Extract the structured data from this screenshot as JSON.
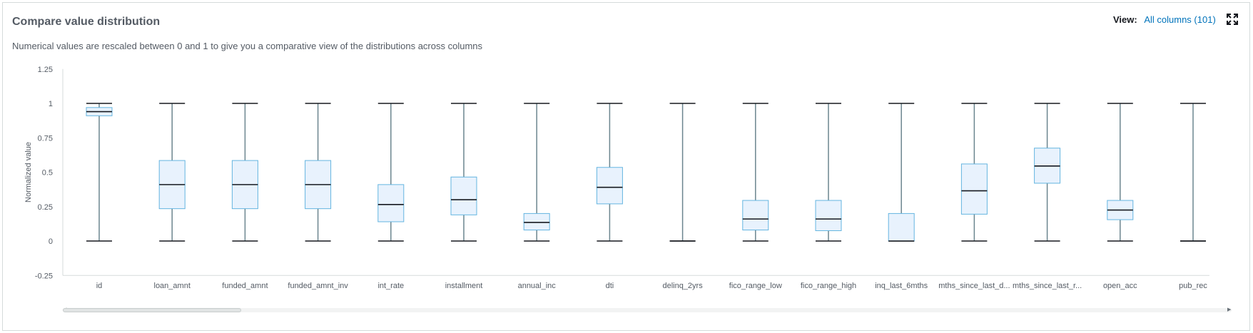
{
  "header": {
    "title": "Compare value distribution",
    "subtitle": "Numerical values are rescaled between 0 and 1 to give you a comparative view of the distributions across columns",
    "view_label": "View:",
    "view_value": "All columns (101)"
  },
  "icons": {
    "expand": "expand-icon"
  },
  "colors": {
    "box_fill": "#e8f2fd",
    "box_stroke": "#64b5e0",
    "whisker": "#6c868f",
    "cap": "#16191f",
    "median": "#16191f",
    "axis": "#d5dbdb",
    "text": "#545b64"
  },
  "chart_data": {
    "type": "boxplot",
    "ylabel": "Normalized value",
    "ylim": [
      -0.25,
      1.25
    ],
    "yticks": [
      1.25,
      1,
      0.75,
      0.5,
      0.25,
      0,
      -0.25
    ],
    "ytick_labels": [
      "1.25",
      "1",
      "0.75",
      "0.5",
      "0.25",
      "0",
      "-0.25"
    ],
    "categories": [
      "id",
      "loan_amnt",
      "funded_amnt",
      "funded_amnt_inv",
      "int_rate",
      "installment",
      "annual_inc",
      "dti",
      "delinq_2yrs",
      "fico_range_low",
      "fico_range_high",
      "inq_last_6mths",
      "mths_since_last_d...",
      "mths_since_last_r...",
      "open_acc",
      "pub_rec"
    ],
    "boxes": [
      {
        "min": 0,
        "q1": 0.91,
        "median": 0.94,
        "q3": 0.97,
        "max": 1
      },
      {
        "min": 0,
        "q1": 0.235,
        "median": 0.41,
        "q3": 0.585,
        "max": 1
      },
      {
        "min": 0,
        "q1": 0.235,
        "median": 0.41,
        "q3": 0.585,
        "max": 1
      },
      {
        "min": 0,
        "q1": 0.235,
        "median": 0.41,
        "q3": 0.585,
        "max": 1
      },
      {
        "min": 0,
        "q1": 0.14,
        "median": 0.265,
        "q3": 0.41,
        "max": 1
      },
      {
        "min": 0,
        "q1": 0.19,
        "median": 0.3,
        "q3": 0.465,
        "max": 1
      },
      {
        "min": 0,
        "q1": 0.08,
        "median": 0.135,
        "q3": 0.2,
        "max": 1
      },
      {
        "min": 0,
        "q1": 0.27,
        "median": 0.39,
        "q3": 0.535,
        "max": 1
      },
      {
        "min": 0,
        "q1": 0,
        "median": 0,
        "q3": 0,
        "max": 1
      },
      {
        "min": 0,
        "q1": 0.08,
        "median": 0.16,
        "q3": 0.295,
        "max": 1
      },
      {
        "min": 0,
        "q1": 0.075,
        "median": 0.16,
        "q3": 0.295,
        "max": 1
      },
      {
        "min": 0,
        "q1": 0,
        "median": 0,
        "q3": 0.2,
        "max": 1
      },
      {
        "min": 0,
        "q1": 0.195,
        "median": 0.365,
        "q3": 0.56,
        "max": 1
      },
      {
        "min": 0,
        "q1": 0.42,
        "median": 0.545,
        "q3": 0.675,
        "max": 1
      },
      {
        "min": 0,
        "q1": 0.155,
        "median": 0.225,
        "q3": 0.295,
        "max": 1
      },
      {
        "min": 0,
        "q1": 0,
        "median": 0,
        "q3": 0,
        "max": 1
      }
    ],
    "grid": false,
    "legend": "none"
  }
}
